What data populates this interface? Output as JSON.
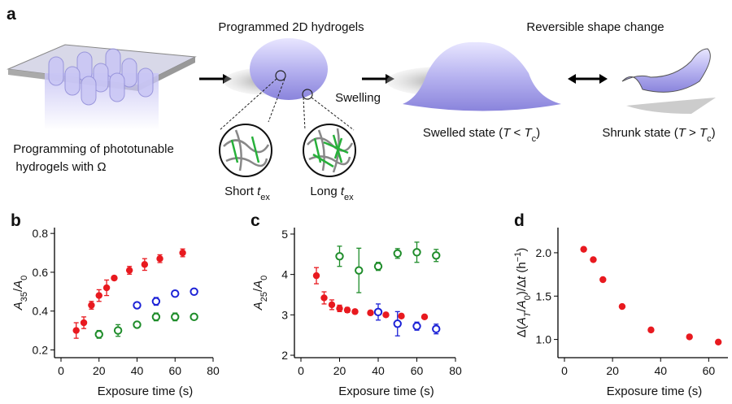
{
  "panel_a": {
    "panel": "a",
    "title_middle": "Programmed 2D hydrogels",
    "title_right": "Reversible shape change",
    "swelling": "Swelling",
    "programming": [
      "Programming of phototunable",
      "hydrogels with Ω"
    ],
    "short": [
      {
        "text": "Short "
      },
      {
        "text": "t",
        "style": "italic"
      },
      {
        "text": "ex",
        "style": "sub"
      }
    ],
    "long": [
      {
        "text": "Long "
      },
      {
        "text": "t",
        "style": "italic"
      },
      {
        "text": "ex",
        "style": "sub"
      }
    ],
    "swelled": [
      {
        "text": "Swelled state ("
      },
      {
        "text": "T",
        "style": "italic"
      },
      {
        "text": " < "
      },
      {
        "text": "T",
        "style": "italic"
      },
      {
        "text": "c",
        "style": "sub"
      },
      {
        "text": ")"
      }
    ],
    "shrunk": [
      {
        "text": "Shrunk state ("
      },
      {
        "text": "T",
        "style": "italic"
      },
      {
        "text": " > "
      },
      {
        "text": "T",
        "style": "italic"
      },
      {
        "text": "c",
        "style": "sub"
      },
      {
        "text": ")"
      }
    ]
  },
  "chart_data": [
    {
      "type": "scatter",
      "panel": "b",
      "xlabel": "Exposure time (s)",
      "ylabel": [
        {
          "text": "A",
          "style": "italic"
        },
        {
          "text": "35",
          "style": "sub"
        },
        {
          "text": "/"
        },
        {
          "text": "A",
          "style": "italic"
        },
        {
          "text": "0",
          "style": "sub"
        }
      ],
      "xlim": [
        0,
        80
      ],
      "xticks": [
        0,
        20,
        40,
        60,
        80
      ],
      "ylim": [
        0.16,
        0.83
      ],
      "yticks": [
        0.2,
        0.4,
        0.6,
        0.8
      ],
      "series": [
        {
          "color": "#e8191f",
          "filled": true,
          "x": [
            8,
            12,
            16,
            20,
            24,
            28,
            36,
            44,
            52,
            64
          ],
          "values": [
            0.3,
            0.34,
            0.43,
            0.48,
            0.52,
            0.57,
            0.61,
            0.64,
            0.67,
            0.7
          ],
          "errors": [
            0.04,
            0.03,
            0.02,
            0.03,
            0.04,
            0.01,
            0.02,
            0.03,
            0.02,
            0.02
          ]
        },
        {
          "color": "#1c22d6",
          "filled": false,
          "x": [
            40,
            50,
            60,
            70
          ],
          "values": [
            0.43,
            0.45,
            0.49,
            0.5
          ],
          "errors": [
            0.01,
            0.02,
            0.01,
            0.01
          ]
        },
        {
          "color": "#1e8c2a",
          "filled": false,
          "x": [
            20,
            30,
            40,
            50,
            60,
            70
          ],
          "values": [
            0.28,
            0.3,
            0.33,
            0.37,
            0.37,
            0.37
          ],
          "errors": [
            0.02,
            0.03,
            0.01,
            0.02,
            0.02,
            0.01
          ]
        }
      ]
    },
    {
      "type": "scatter",
      "panel": "c",
      "xlabel": "Exposure time (s)",
      "ylabel": [
        {
          "text": "A",
          "style": "italic"
        },
        {
          "text": "25",
          "style": "sub"
        },
        {
          "text": "/"
        },
        {
          "text": "A",
          "style": "italic"
        },
        {
          "text": "0",
          "style": "sub"
        }
      ],
      "xlim": [
        0,
        80
      ],
      "xticks": [
        0,
        20,
        40,
        60,
        80
      ],
      "ylim": [
        1.94,
        5.16
      ],
      "yticks": [
        2,
        3,
        4,
        5
      ],
      "series": [
        {
          "color": "#e8191f",
          "filled": true,
          "x": [
            8,
            12,
            16,
            20,
            24,
            28,
            36,
            44,
            52,
            64
          ],
          "values": [
            3.97,
            3.42,
            3.25,
            3.16,
            3.12,
            3.08,
            3.05,
            3.0,
            2.97,
            2.95
          ],
          "errors": [
            0.2,
            0.15,
            0.12,
            0.08,
            0.06,
            0.05,
            0.04,
            0.05,
            0.05,
            0.03
          ]
        },
        {
          "color": "#1c22d6",
          "filled": false,
          "x": [
            40,
            50,
            60,
            70
          ],
          "values": [
            3.07,
            2.78,
            2.72,
            2.65
          ],
          "errors": [
            0.2,
            0.3,
            0.1,
            0.12
          ]
        },
        {
          "color": "#1e8c2a",
          "filled": false,
          "x": [
            20,
            30,
            40,
            50,
            60,
            70
          ],
          "values": [
            4.45,
            4.1,
            4.2,
            4.52,
            4.55,
            4.47
          ],
          "errors": [
            0.25,
            0.55,
            0.1,
            0.12,
            0.25,
            0.15
          ]
        }
      ]
    },
    {
      "type": "scatter",
      "panel": "d",
      "xlabel": "Exposure time (s)",
      "ylabel": [
        {
          "text": "Δ("
        },
        {
          "text": "A",
          "style": "italic"
        },
        {
          "text": "T",
          "style": "isub"
        },
        {
          "text": "/"
        },
        {
          "text": "A",
          "style": "italic"
        },
        {
          "text": "0",
          "style": "sub"
        },
        {
          "text": ")/Δ"
        },
        {
          "text": "t",
          "style": "italic"
        },
        {
          "text": " (h"
        },
        {
          "text": "−1",
          "style": "sup"
        },
        {
          "text": ")"
        }
      ],
      "xlim": [
        0,
        68
      ],
      "xticks": [
        0,
        20,
        40,
        60
      ],
      "ylim": [
        0.79,
        2.29
      ],
      "yticks": [
        {
          "value": 1,
          "label": "1.0"
        },
        {
          "value": 1.5,
          "label": "1.5"
        },
        {
          "value": 2,
          "label": "2.0"
        }
      ],
      "series": [
        {
          "color": "#e8191f",
          "filled": true,
          "x": [
            8,
            12,
            16,
            24,
            36,
            52,
            64
          ],
          "values": [
            2.04,
            1.92,
            1.69,
            1.38,
            1.11,
            1.03,
            0.97
          ]
        }
      ]
    }
  ]
}
